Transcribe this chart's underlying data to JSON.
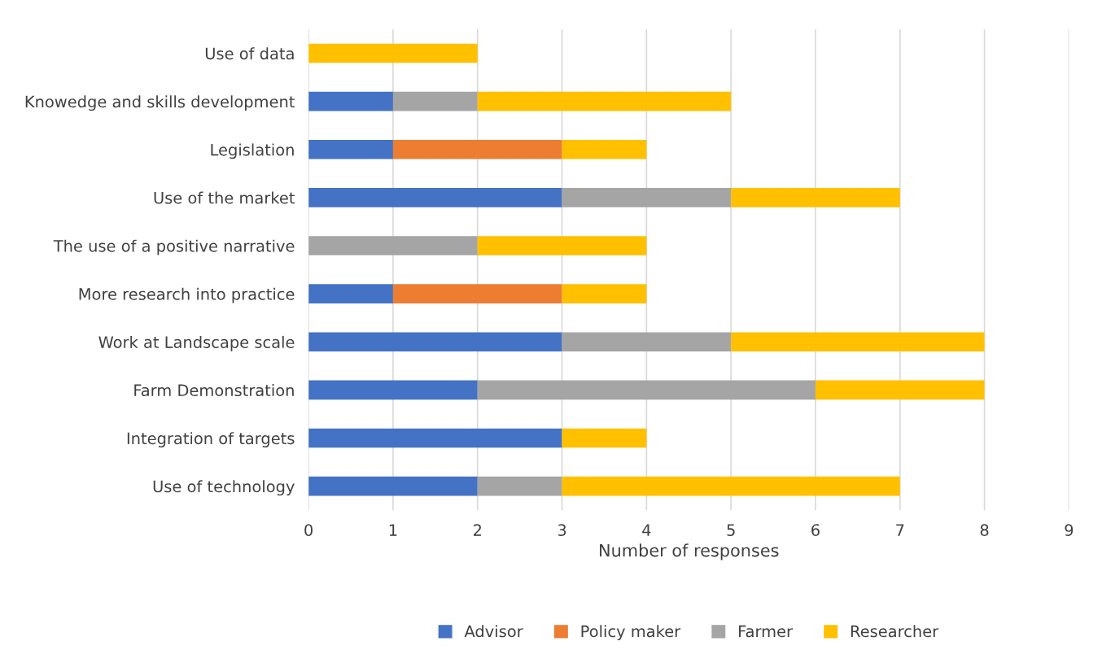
{
  "chart_data": {
    "type": "bar",
    "orientation": "horizontal",
    "stacked": true,
    "categories": [
      "Use of data",
      "Knowedge and skills development",
      "Legislation",
      "Use of the market",
      "The use of a positive narrative",
      "More research into practice",
      "Work at Landscape scale",
      "Farm Demonstration",
      "Integration of targets",
      "Use of technology"
    ],
    "series": [
      {
        "name": "Advisor",
        "color": "#4472c4",
        "values": [
          0,
          1,
          1,
          3,
          0,
          1,
          3,
          2,
          3,
          2
        ]
      },
      {
        "name": "Policy maker",
        "color": "#ed7d31",
        "values": [
          0,
          0,
          2,
          0,
          0,
          2,
          0,
          0,
          0,
          0
        ]
      },
      {
        "name": "Farmer",
        "color": "#a5a5a5",
        "values": [
          0,
          1,
          0,
          2,
          2,
          0,
          2,
          4,
          0,
          1
        ]
      },
      {
        "name": "Researcher",
        "color": "#ffc000",
        "values": [
          2,
          3,
          1,
          2,
          2,
          1,
          3,
          2,
          1,
          4
        ]
      }
    ],
    "xlabel": "Number of responses",
    "xlim": [
      0,
      9
    ],
    "xticks": [
      0,
      1,
      2,
      3,
      4,
      5,
      6,
      7,
      8,
      9
    ],
    "grid": "x",
    "legend": "bottom"
  }
}
